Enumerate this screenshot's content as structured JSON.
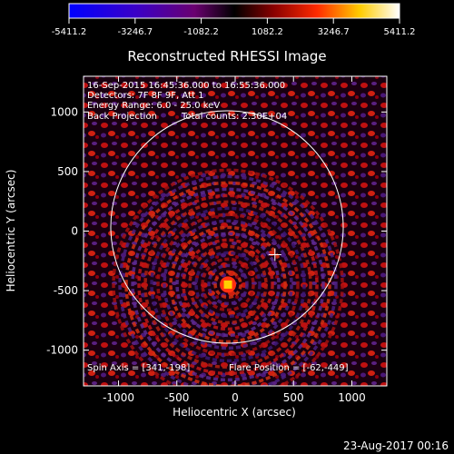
{
  "colorbar": {
    "ticks": [
      "-5411.2",
      "-3246.7",
      "-1082.2",
      "1082.2",
      "3246.7",
      "5411.2"
    ],
    "colors": [
      "#0000ff",
      "#3a00c8",
      "#6a0070",
      "#000000",
      "#8a0000",
      "#ff2a00",
      "#ffcc00",
      "#ffffff"
    ]
  },
  "title": "Reconstructed RHESSI Image",
  "info": {
    "line1": "16-Sep-2015 16:45:36.000 to 16:55:36.000",
    "line2": "Detectors: 7F 8F 9F, Att 1",
    "line3": "Energy Range: 6.0 - 25.0 keV",
    "line4a": "Back Projection",
    "line4b": "Total counts: 2.30E+04"
  },
  "footer_left": "Spin Axis = [341,-198]",
  "footer_right": "Flare Position = [-62,-449]",
  "x_axis": {
    "label": "Heliocentric X (arcsec)",
    "ticks": [
      "-1000",
      "-500",
      "0",
      "500",
      "1000"
    ],
    "range": [
      -1300,
      1300
    ]
  },
  "y_axis": {
    "label": "Heliocentric Y (arcsec)",
    "ticks": [
      "1000",
      "500",
      "0",
      "-500",
      "-1000"
    ],
    "range": [
      -1300,
      1300
    ]
  },
  "spin_axis": [
    341,
    -198
  ],
  "flare_position": [
    -62,
    -449
  ],
  "date_stamp": "23-Aug-2017 00:16"
}
